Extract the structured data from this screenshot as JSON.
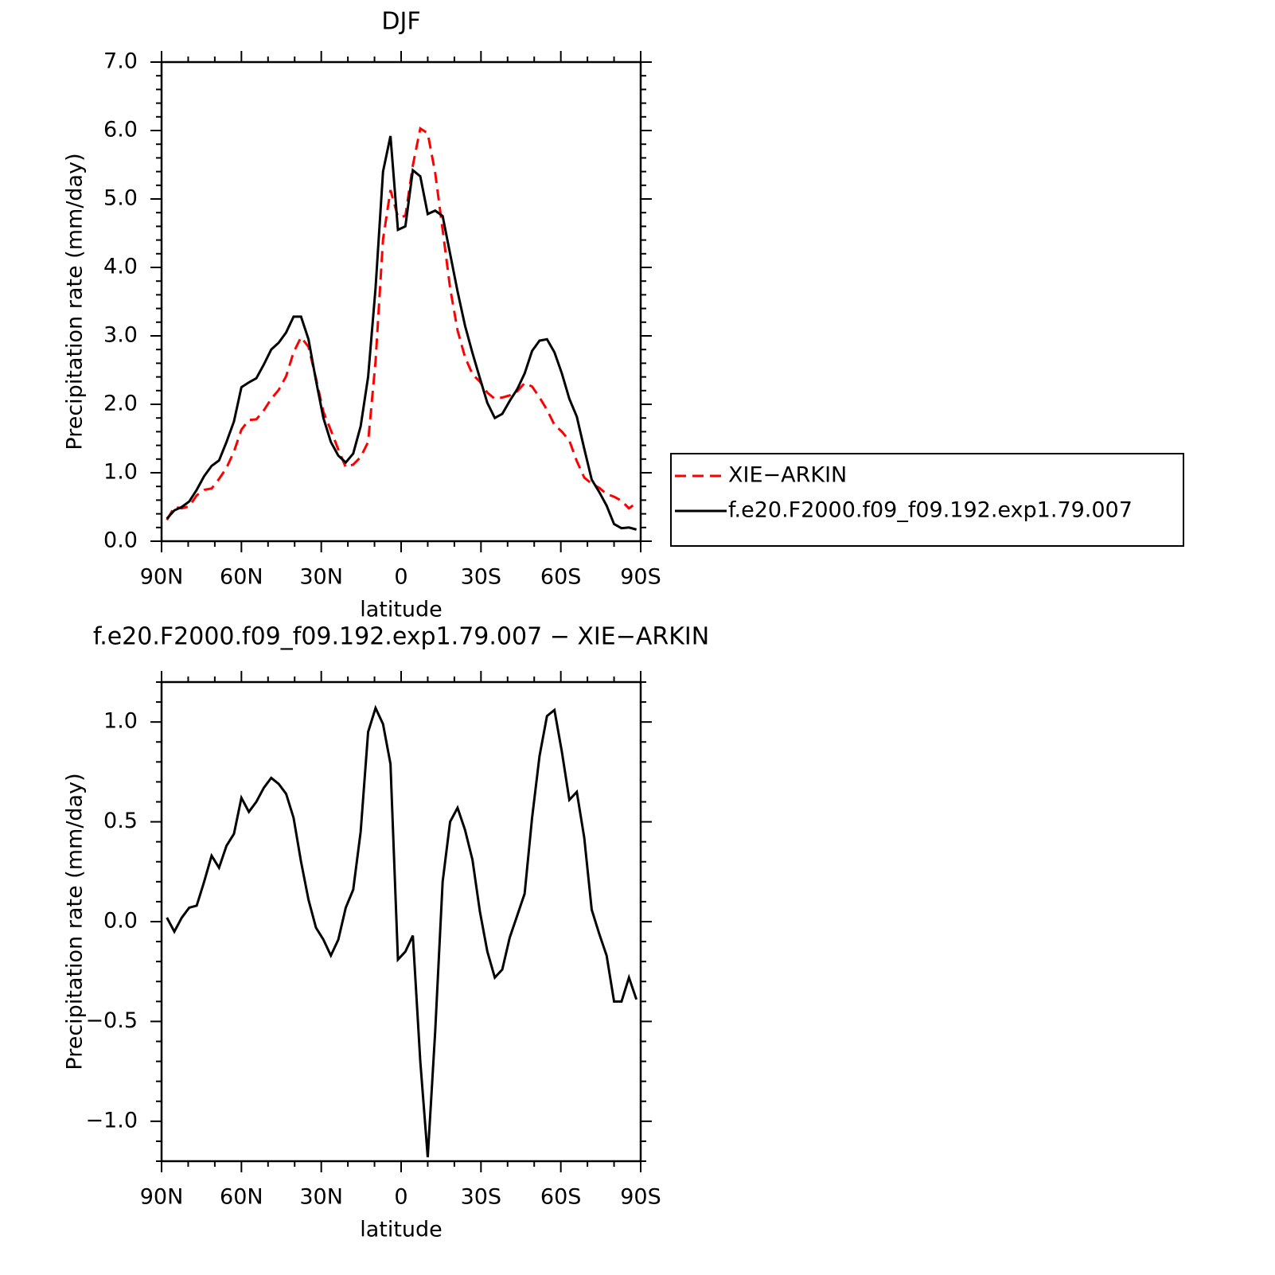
{
  "chart_data": [
    {
      "type": "line",
      "title": "DJF",
      "ylabel": "Precipitation rate (mm/day)",
      "xlabel": "latitude",
      "x": [
        88,
        85.2,
        82.4,
        79.6,
        76.8,
        74,
        71.2,
        68.4,
        65.6,
        62.8,
        60,
        57.2,
        54.4,
        51.6,
        48.8,
        46,
        43.2,
        40.4,
        37.6,
        34.8,
        32,
        29.2,
        26.4,
        23.6,
        20.8,
        18,
        15.2,
        12.4,
        9.6,
        6.8,
        4,
        1.2,
        -1.6,
        -4.4,
        -7.2,
        -10,
        -12.8,
        -15.6,
        -18.4,
        -21.2,
        -24,
        -26.8,
        -29.6,
        -32.4,
        -35.2,
        -38,
        -40.8,
        -43.6,
        -46.4,
        -49.2,
        -52,
        -54.8,
        -57.6,
        -60.4,
        -63.2,
        -66,
        -68.8,
        -71.6,
        -74.4,
        -77.2,
        -80,
        -82.8,
        -85.6,
        -88.4
      ],
      "xlim": [
        90,
        -90
      ],
      "xticks": [
        {
          "value": 90,
          "label": "90N"
        },
        {
          "value": 60,
          "label": "60N"
        },
        {
          "value": 30,
          "label": "30N"
        },
        0,
        {
          "value": -30,
          "label": "30S"
        },
        {
          "value": -60,
          "label": "60S"
        },
        {
          "value": -90,
          "label": "90S"
        }
      ],
      "ylim": [
        0,
        7
      ],
      "yticks": [
        {
          "value": 0,
          "label": "0.0"
        },
        {
          "value": 1,
          "label": "1.0"
        },
        {
          "value": 2,
          "label": "2.0"
        },
        {
          "value": 3,
          "label": "3.0"
        },
        {
          "value": 4,
          "label": "4.0"
        },
        {
          "value": 5,
          "label": "5.0"
        },
        {
          "value": 6,
          "label": "6.0"
        },
        {
          "value": 7,
          "label": "7.0"
        }
      ],
      "legend": "right",
      "series": [
        {
          "name": "XIE−ARKIN",
          "color": "#ff0000",
          "linestyle": "dashed",
          "values": [
            0.31,
            0.5,
            0.48,
            0.51,
            0.67,
            0.75,
            0.77,
            0.91,
            1.07,
            1.31,
            1.63,
            1.77,
            1.78,
            1.91,
            2.08,
            2.21,
            2.41,
            2.76,
            2.98,
            2.84,
            2.38,
            1.89,
            1.62,
            1.34,
            1.08,
            1.12,
            1.23,
            1.45,
            2.63,
            4.41,
            5.13,
            4.74,
            4.75,
            5.49,
            6.03,
            5.96,
            5.38,
            4.55,
            3.7,
            3.08,
            2.69,
            2.44,
            2.33,
            2.17,
            2.08,
            2.1,
            2.13,
            2.19,
            2.31,
            2.26,
            2.1,
            1.92,
            1.7,
            1.6,
            1.47,
            1.17,
            0.93,
            0.84,
            0.78,
            0.69,
            0.65,
            0.59,
            0.48,
            0.56
          ]
        },
        {
          "name": "f.e20.F2000.f09_f09.192.exp1.79.007",
          "color": "#000000",
          "linestyle": "solid",
          "values": [
            0.33,
            0.45,
            0.5,
            0.58,
            0.75,
            0.95,
            1.1,
            1.18,
            1.45,
            1.75,
            2.25,
            2.32,
            2.38,
            2.58,
            2.8,
            2.9,
            3.05,
            3.28,
            3.28,
            2.95,
            2.35,
            1.8,
            1.45,
            1.25,
            1.15,
            1.28,
            1.68,
            2.4,
            3.7,
            5.4,
            5.92,
            4.55,
            4.6,
            5.42,
            5.33,
            4.78,
            4.83,
            4.75,
            4.2,
            3.65,
            3.15,
            2.75,
            2.38,
            2.02,
            1.8,
            1.86,
            2.05,
            2.22,
            2.45,
            2.78,
            2.93,
            2.95,
            2.76,
            2.45,
            2.08,
            1.82,
            1.35,
            0.9,
            0.72,
            0.52,
            0.25,
            0.19,
            0.2,
            0.17
          ]
        }
      ]
    },
    {
      "type": "line",
      "title": "f.e20.F2000.f09_f09.192.exp1.79.007 − XIE−ARKIN",
      "ylabel": "Precipitation rate (mm/day)",
      "xlabel": "latitude",
      "x": [
        88,
        85.2,
        82.4,
        79.6,
        76.8,
        74,
        71.2,
        68.4,
        65.6,
        62.8,
        60,
        57.2,
        54.4,
        51.6,
        48.8,
        46,
        43.2,
        40.4,
        37.6,
        34.8,
        32,
        29.2,
        26.4,
        23.6,
        20.8,
        18,
        15.2,
        12.4,
        9.6,
        6.8,
        4,
        1.2,
        -1.6,
        -4.4,
        -7.2,
        -10,
        -12.8,
        -15.6,
        -18.4,
        -21.2,
        -24,
        -26.8,
        -29.6,
        -32.4,
        -35.2,
        -38,
        -40.8,
        -43.6,
        -46.4,
        -49.2,
        -52,
        -54.8,
        -57.6,
        -60.4,
        -63.2,
        -66,
        -68.8,
        -71.6,
        -74.4,
        -77.2,
        -80,
        -82.8,
        -85.6,
        -88.4
      ],
      "xlim": [
        90,
        -90
      ],
      "xticks": [
        {
          "value": 90,
          "label": "90N"
        },
        {
          "value": 60,
          "label": "60N"
        },
        {
          "value": 30,
          "label": "30N"
        },
        0,
        {
          "value": -30,
          "label": "30S"
        },
        {
          "value": -60,
          "label": "60S"
        },
        {
          "value": -90,
          "label": "90S"
        }
      ],
      "ylim": [
        -1.2,
        1.2
      ],
      "yticks": [
        {
          "value": -1,
          "label": "−1.0"
        },
        {
          "value": -0.5,
          "label": "−0.5"
        },
        {
          "value": 0,
          "label": "0.0"
        },
        0.5,
        {
          "value": 1,
          "label": "1.0"
        }
      ],
      "series": [
        {
          "color": "#000000",
          "linestyle": "solid",
          "values": [
            0.02,
            -0.05,
            0.02,
            0.07,
            0.08,
            0.2,
            0.33,
            0.27,
            0.38,
            0.44,
            0.62,
            0.55,
            0.6,
            0.67,
            0.72,
            0.69,
            0.64,
            0.52,
            0.3,
            0.11,
            -0.03,
            -0.09,
            -0.17,
            -0.09,
            0.07,
            0.16,
            0.45,
            0.95,
            1.07,
            0.99,
            0.79,
            -0.19,
            -0.15,
            -0.07,
            -0.7,
            -1.18,
            -0.55,
            0.2,
            0.5,
            0.57,
            0.46,
            0.31,
            0.05,
            -0.15,
            -0.28,
            -0.24,
            -0.08,
            0.03,
            0.14,
            0.52,
            0.83,
            1.03,
            1.06,
            0.85,
            0.61,
            0.65,
            0.42,
            0.06,
            -0.06,
            -0.17,
            -0.4,
            -0.4,
            -0.28,
            -0.39
          ]
        }
      ]
    }
  ]
}
